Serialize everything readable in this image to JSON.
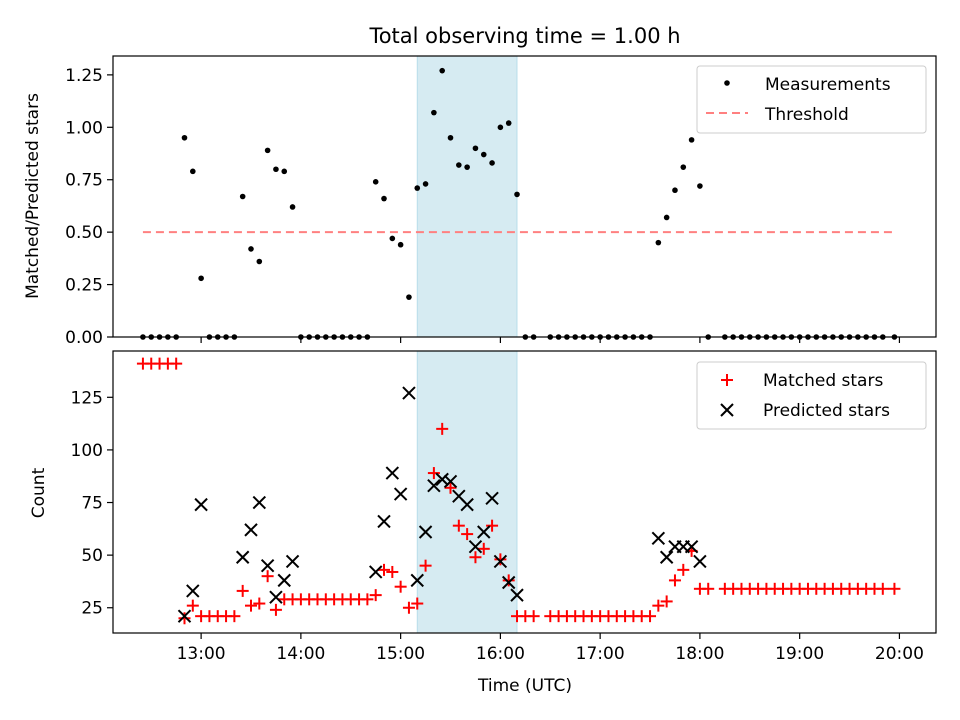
{
  "chart_data": [
    {
      "type": "scatter",
      "title": "Total observing time = 1.00 h",
      "xlabel": "",
      "ylabel": "Matched/Predicted stars",
      "ylim": [
        0,
        1.34
      ],
      "yticks": [
        0.0,
        0.25,
        0.5,
        0.75,
        1.0,
        1.25
      ],
      "ytick_labels": [
        "0.00",
        "0.25",
        "0.50",
        "0.75",
        "1.00",
        "1.25"
      ],
      "xlim": [
        "12:07",
        "20:22"
      ],
      "grid": false,
      "legend_position": "top-right",
      "legend": [
        "Measurements",
        "Threshold"
      ],
      "highlight_span": [
        "15:10",
        "16:10"
      ],
      "threshold": {
        "name": "Threshold",
        "y": 0.5,
        "x_start": "12:25",
        "x_end": "19:57",
        "color": "#ff8080"
      },
      "series": [
        {
          "name": "Measurements",
          "color": "#000000",
          "x": [
            "12:25",
            "12:30",
            "12:35",
            "12:40",
            "12:45",
            "12:50",
            "12:55",
            "13:00",
            "13:05",
            "13:10",
            "13:15",
            "13:20",
            "13:25",
            "13:30",
            "13:35",
            "13:40",
            "13:45",
            "13:50",
            "13:55",
            "14:00",
            "14:05",
            "14:10",
            "14:15",
            "14:20",
            "14:25",
            "14:30",
            "14:35",
            "14:40",
            "14:45",
            "14:50",
            "14:55",
            "15:00",
            "15:05",
            "15:10",
            "15:15",
            "15:20",
            "15:25",
            "15:30",
            "15:35",
            "15:40",
            "15:45",
            "15:50",
            "15:55",
            "16:00",
            "16:05",
            "16:10",
            "16:15",
            "16:20",
            "16:30",
            "16:35",
            "16:40",
            "16:45",
            "16:50",
            "16:55",
            "17:00",
            "17:05",
            "17:10",
            "17:15",
            "17:20",
            "17:25",
            "17:30",
            "17:35",
            "17:40",
            "17:45",
            "17:50",
            "17:55",
            "18:00",
            "18:05",
            "18:15",
            "18:20",
            "18:25",
            "18:30",
            "18:35",
            "18:40",
            "18:45",
            "18:50",
            "18:55",
            "19:00",
            "19:05",
            "19:10",
            "19:15",
            "19:20",
            "19:25",
            "19:30",
            "19:35",
            "19:40",
            "19:45",
            "19:50",
            "19:57"
          ],
          "y": [
            0,
            0,
            0,
            0,
            0,
            0.95,
            0.79,
            0.28,
            0,
            0,
            0,
            0,
            0.67,
            0.42,
            0.36,
            0.89,
            0.8,
            0.79,
            0.62,
            0,
            0,
            0,
            0,
            0,
            0,
            0,
            0,
            0,
            0.74,
            0.66,
            0.47,
            0.44,
            0.19,
            0.71,
            0.73,
            1.07,
            1.27,
            0.95,
            0.82,
            0.81,
            0.9,
            0.87,
            0.83,
            1.0,
            1.02,
            0.68,
            0,
            0,
            0,
            0,
            0,
            0,
            0,
            0,
            0,
            0,
            0,
            0,
            0,
            0,
            0,
            0.45,
            0.57,
            0.7,
            0.81,
            0.94,
            0.72,
            0,
            0,
            0,
            0,
            0,
            0,
            0,
            0,
            0,
            0,
            0,
            0,
            0,
            0,
            0,
            0,
            0,
            0,
            0,
            0,
            0,
            0
          ]
        }
      ]
    },
    {
      "type": "scatter",
      "title": "",
      "xlabel": "Time (UTC)",
      "ylabel": "Count",
      "ylim": [
        13,
        147
      ],
      "yticks": [
        25,
        50,
        75,
        100,
        125
      ],
      "ytick_labels": [
        "25",
        "50",
        "75",
        "100",
        "125"
      ],
      "xlim": [
        "12:07",
        "20:22"
      ],
      "xticks": [
        "13:00",
        "14:00",
        "15:00",
        "16:00",
        "17:00",
        "18:00",
        "19:00",
        "20:00"
      ],
      "grid": false,
      "legend_position": "top-right",
      "legend": [
        "Matched stars",
        "Predicted stars"
      ],
      "highlight_span": [
        "15:10",
        "16:10"
      ],
      "series": [
        {
          "name": "Matched stars",
          "marker": "+",
          "color": "#ff0000",
          "x": [
            "12:25",
            "12:30",
            "12:35",
            "12:40",
            "12:45",
            "12:50",
            "12:55",
            "13:00",
            "13:05",
            "13:10",
            "13:15",
            "13:20",
            "13:25",
            "13:30",
            "13:35",
            "13:40",
            "13:45",
            "13:50",
            "13:55",
            "14:00",
            "14:05",
            "14:10",
            "14:15",
            "14:20",
            "14:25",
            "14:30",
            "14:35",
            "14:40",
            "14:45",
            "14:50",
            "14:55",
            "15:00",
            "15:05",
            "15:10",
            "15:15",
            "15:20",
            "15:25",
            "15:30",
            "15:35",
            "15:40",
            "15:45",
            "15:50",
            "15:55",
            "16:00",
            "16:05",
            "16:10",
            "16:15",
            "16:20",
            "16:30",
            "16:35",
            "16:40",
            "16:45",
            "16:50",
            "16:55",
            "17:00",
            "17:05",
            "17:10",
            "17:15",
            "17:20",
            "17:25",
            "17:30",
            "17:35",
            "17:40",
            "17:45",
            "17:50",
            "17:55",
            "18:00",
            "18:05",
            "18:15",
            "18:20",
            "18:25",
            "18:30",
            "18:35",
            "18:40",
            "18:45",
            "18:50",
            "18:55",
            "19:00",
            "19:05",
            "19:10",
            "19:15",
            "19:20",
            "19:25",
            "19:30",
            "19:35",
            "19:40",
            "19:45",
            "19:50",
            "19:57"
          ],
          "y": [
            141,
            141,
            141,
            141,
            141,
            20,
            26,
            21,
            21,
            21,
            21,
            21,
            33,
            26,
            27,
            40,
            24,
            29,
            29,
            29,
            29,
            29,
            29,
            29,
            29,
            29,
            29,
            29,
            31,
            43,
            42,
            35,
            25,
            27,
            45,
            89,
            110,
            82,
            64,
            60,
            49,
            53,
            64,
            48,
            38,
            21,
            21,
            21,
            21,
            21,
            21,
            21,
            21,
            21,
            21,
            21,
            21,
            21,
            21,
            21,
            21,
            26,
            28,
            38,
            43,
            52,
            34,
            34,
            34,
            34,
            34,
            34,
            34,
            34,
            34,
            34,
            34,
            34,
            34,
            34,
            34,
            34,
            34,
            34,
            34,
            34,
            34,
            34,
            34
          ]
        },
        {
          "name": "Predicted stars",
          "marker": "x",
          "color": "#000000",
          "x": [
            "12:50",
            "12:55",
            "13:00",
            "13:25",
            "13:30",
            "13:35",
            "13:40",
            "13:45",
            "13:50",
            "13:55",
            "14:45",
            "14:50",
            "14:55",
            "15:00",
            "15:05",
            "15:10",
            "15:15",
            "15:20",
            "15:25",
            "15:30",
            "15:35",
            "15:40",
            "15:45",
            "15:50",
            "15:55",
            "16:00",
            "16:05",
            "16:10",
            "17:35",
            "17:40",
            "17:45",
            "17:50",
            "17:55",
            "18:00"
          ],
          "y": [
            21,
            33,
            74,
            49,
            62,
            75,
            45,
            30,
            38,
            47,
            42,
            66,
            89,
            79,
            127,
            38,
            61,
            83,
            86,
            85,
            78,
            74,
            54,
            61,
            77,
            47,
            37,
            31,
            58,
            49,
            54,
            54,
            54,
            47
          ]
        }
      ]
    }
  ]
}
